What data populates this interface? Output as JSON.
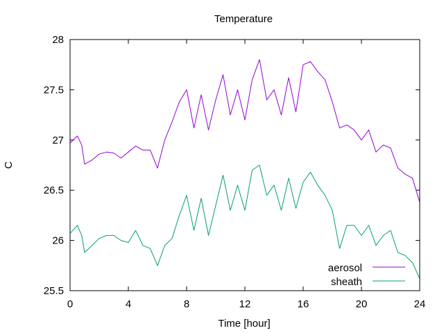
{
  "chart_data": {
    "type": "line",
    "title": "Temperature",
    "xlabel": "Time [hour]",
    "ylabel": "C",
    "xlim": [
      0,
      24
    ],
    "ylim": [
      25.5,
      28
    ],
    "x_ticks": [
      "0",
      "4",
      "8",
      "12",
      "16",
      "20",
      "24"
    ],
    "y_ticks": [
      "25.5",
      "26",
      "26.5",
      "27",
      "27.5",
      "28"
    ],
    "grid": false,
    "legend_position": "bottom-right",
    "series": [
      {
        "name": "aerosol",
        "color": "#9400d3",
        "x": [
          0,
          0.5,
          0.8,
          1.0,
          1.5,
          2.0,
          2.5,
          3.0,
          3.5,
          4.0,
          4.5,
          5.0,
          5.5,
          6.0,
          6.5,
          7.0,
          7.5,
          8.0,
          8.5,
          9.0,
          9.5,
          10.0,
          10.5,
          11.0,
          11.5,
          12.0,
          12.5,
          13.0,
          13.5,
          14.0,
          14.5,
          15.0,
          15.5,
          16.0,
          16.5,
          17.0,
          17.5,
          18.0,
          18.5,
          19.0,
          19.5,
          20.0,
          20.5,
          21.0,
          21.5,
          22.0,
          22.5,
          23.0,
          23.5,
          24.0
        ],
        "values": [
          26.97,
          27.04,
          26.95,
          26.76,
          26.8,
          26.86,
          26.88,
          26.87,
          26.82,
          26.88,
          26.94,
          26.9,
          26.9,
          26.72,
          27.0,
          27.18,
          27.38,
          27.5,
          27.12,
          27.45,
          27.1,
          27.4,
          27.65,
          27.25,
          27.5,
          27.2,
          27.6,
          27.8,
          27.4,
          27.5,
          27.25,
          27.62,
          27.28,
          27.75,
          27.78,
          27.68,
          27.6,
          27.38,
          27.12,
          27.15,
          27.1,
          27.0,
          27.1,
          26.88,
          26.95,
          26.92,
          26.72,
          26.66,
          26.62,
          26.38
        ]
      },
      {
        "name": "sheath",
        "color": "#009e73",
        "x": [
          0,
          0.5,
          0.8,
          1.0,
          1.5,
          2.0,
          2.5,
          3.0,
          3.5,
          4.0,
          4.5,
          5.0,
          5.5,
          6.0,
          6.5,
          7.0,
          7.5,
          8.0,
          8.5,
          9.0,
          9.5,
          10.0,
          10.5,
          11.0,
          11.5,
          12.0,
          12.5,
          13.0,
          13.5,
          14.0,
          14.5,
          15.0,
          15.5,
          16.0,
          16.5,
          17.0,
          17.5,
          18.0,
          18.5,
          19.0,
          19.5,
          20.0,
          20.5,
          21.0,
          21.5,
          22.0,
          22.5,
          23.0,
          23.5,
          24.0
        ],
        "values": [
          26.07,
          26.15,
          26.05,
          25.88,
          25.95,
          26.02,
          26.05,
          26.05,
          26.0,
          25.98,
          26.1,
          25.95,
          25.92,
          25.75,
          25.95,
          26.02,
          26.25,
          26.45,
          26.1,
          26.42,
          26.05,
          26.35,
          26.65,
          26.3,
          26.55,
          26.3,
          26.7,
          26.75,
          26.45,
          26.55,
          26.3,
          26.62,
          26.32,
          26.58,
          26.68,
          26.55,
          26.45,
          26.3,
          25.92,
          26.15,
          26.15,
          26.05,
          26.15,
          25.95,
          26.05,
          26.1,
          25.88,
          25.85,
          25.78,
          25.62
        ]
      }
    ]
  }
}
